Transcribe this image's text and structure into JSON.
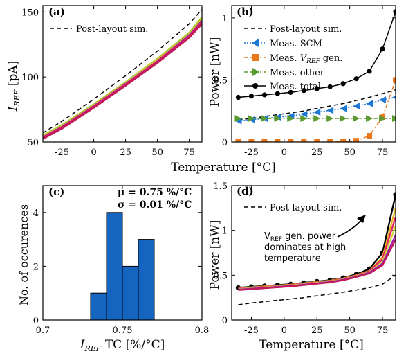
{
  "figure": {
    "x_unit_label": "Temperature [°C]",
    "x_unit_label_d": "Temperature [°C]"
  },
  "chart_data": [
    {
      "panel": "(a)",
      "type": "line",
      "ylabel": "I_REF [pA]",
      "xlabel": "Temperature [°C]",
      "xlim": [
        -40,
        85
      ],
      "ylim": [
        50,
        155
      ],
      "xticks": [
        -25,
        0,
        25,
        50,
        75
      ],
      "yticks": [
        50,
        100,
        150
      ],
      "legend": "top-left",
      "x": [
        -40,
        -25,
        0,
        25,
        50,
        75,
        85
      ],
      "series": [
        {
          "name": "Post-layout sim.",
          "style": "dashed",
          "color": "#000000",
          "values": [
            57,
            66,
            83,
            101,
            120,
            141,
            152
          ]
        },
        {
          "color": "#cddc39",
          "values": [
            55,
            63,
            79,
            96,
            114,
            134,
            146
          ]
        },
        {
          "color": "#8bc34a",
          "values": [
            54.5,
            62.5,
            78.5,
            95.5,
            113.5,
            133.5,
            145
          ]
        },
        {
          "color": "#e6b422",
          "values": [
            54,
            62,
            78,
            95,
            113,
            132.5,
            144
          ]
        },
        {
          "color": "#9c27b0",
          "values": [
            53.5,
            61.5,
            77.5,
            94.5,
            112,
            132,
            143
          ]
        },
        {
          "color": "#e91e63",
          "values": [
            53,
            61,
            77,
            94,
            111.5,
            131,
            142
          ]
        },
        {
          "color": "#c2185b",
          "values": [
            52.5,
            60.5,
            76.5,
            93.5,
            111,
            130.5,
            141
          ]
        }
      ]
    },
    {
      "panel": "(b)",
      "type": "line",
      "ylabel": "Power [nW]",
      "xlabel": "Temperature [°C]",
      "xlim": [
        -40,
        85
      ],
      "ylim": [
        0,
        1.1
      ],
      "xticks": [
        -25,
        0,
        25,
        50,
        75
      ],
      "yticks": [
        0,
        0.5,
        1
      ],
      "ytick_labels": [
        "0",
        "0.5",
        "1"
      ],
      "legend": "top-right",
      "series": [
        {
          "name": "Post-layout sim.",
          "style": "dashed",
          "color": "#000000",
          "x": [
            -35,
            -25,
            -15,
            -5,
            5,
            15,
            25,
            35,
            45,
            55,
            65,
            75,
            85
          ],
          "values": [
            0.18,
            0.19,
            0.205,
            0.22,
            0.235,
            0.25,
            0.27,
            0.29,
            0.31,
            0.335,
            0.36,
            0.39,
            0.42
          ]
        },
        {
          "name": "Meas. SCM",
          "style": "dotted",
          "marker": "triangle-left",
          "color": "#1f77d4",
          "x": [
            -35,
            -25,
            -15,
            -5,
            5,
            15,
            25,
            35,
            45,
            55,
            65,
            75,
            85
          ],
          "values": [
            0.17,
            0.18,
            0.19,
            0.2,
            0.21,
            0.225,
            0.24,
            0.255,
            0.27,
            0.29,
            0.31,
            0.34,
            0.36
          ]
        },
        {
          "name": "Meas. V_REF gen.",
          "style": "dashdot",
          "marker": "square",
          "color": "#e8761a",
          "x": [
            -35,
            -25,
            -15,
            -5,
            5,
            15,
            25,
            35,
            45,
            55,
            65,
            75,
            85
          ],
          "values": [
            0,
            0,
            0,
            0,
            0,
            0,
            0,
            0,
            0.002,
            0.01,
            0.05,
            0.2,
            0.5
          ]
        },
        {
          "name": "Meas. other",
          "style": "dashdot",
          "marker": "triangle-right",
          "color": "#5a9a2e",
          "x": [
            -35,
            -25,
            -15,
            -5,
            5,
            15,
            25,
            35,
            45,
            55,
            65,
            75,
            85
          ],
          "values": [
            0.19,
            0.19,
            0.19,
            0.19,
            0.19,
            0.19,
            0.19,
            0.19,
            0.19,
            0.19,
            0.19,
            0.19,
            0.19
          ]
        },
        {
          "name": "Meas. total",
          "style": "solid",
          "marker": "circle",
          "color": "#000000",
          "x": [
            -35,
            -25,
            -15,
            -5,
            5,
            15,
            25,
            35,
            45,
            55,
            65,
            75,
            85
          ],
          "values": [
            0.36,
            0.37,
            0.38,
            0.39,
            0.4,
            0.415,
            0.43,
            0.445,
            0.47,
            0.51,
            0.57,
            0.75,
            1.05
          ]
        }
      ]
    },
    {
      "panel": "(c)",
      "type": "bar",
      "ylabel": "No. of occurences",
      "xlabel": "I_REF TC [%/°C]",
      "xlim": [
        0.7,
        0.8
      ],
      "ylim": [
        0,
        5
      ],
      "xticks": [
        0.7,
        0.75,
        0.8
      ],
      "xtick_labels": [
        "0.7",
        "0.75",
        "0.8"
      ],
      "yticks": [
        0,
        2,
        4
      ],
      "bins": [
        [
          0.73,
          0.74
        ],
        [
          0.74,
          0.75
        ],
        [
          0.75,
          0.76
        ],
        [
          0.76,
          0.77
        ]
      ],
      "values": [
        1,
        4,
        2,
        3
      ],
      "color": "#1565c0",
      "stats": {
        "mu": "μ = 0.75 %/°C",
        "sigma": "σ = 0.01 %/°C"
      }
    },
    {
      "panel": "(d)",
      "type": "line",
      "ylabel": "Power [nW]",
      "xlabel": "Temperature [°C]",
      "xlim": [
        -40,
        85
      ],
      "ylim": [
        0,
        1.5
      ],
      "xticks": [
        -25,
        0,
        25,
        50,
        75
      ],
      "yticks": [
        0,
        0.5,
        1,
        1.5
      ],
      "ytick_labels": [
        "0",
        "0.5",
        "1",
        "1.5"
      ],
      "legend": "top-left",
      "annotation": {
        "line1": "V",
        "sub": "REF",
        "line1_rest": " gen. power",
        "line2": "dominates at high",
        "line3": "temperature"
      },
      "x": [
        -35,
        -25,
        -15,
        -5,
        5,
        15,
        25,
        35,
        45,
        55,
        65,
        75,
        85
      ],
      "series": [
        {
          "name": "Post-layout sim.",
          "style": "dashed",
          "color": "#000000",
          "values": [
            0.17,
            0.19,
            0.205,
            0.22,
            0.235,
            0.25,
            0.27,
            0.29,
            0.31,
            0.335,
            0.36,
            0.4,
            0.5
          ]
        },
        {
          "color": "#000000",
          "marker": "circle",
          "values": [
            0.36,
            0.37,
            0.38,
            0.39,
            0.4,
            0.415,
            0.43,
            0.445,
            0.47,
            0.51,
            0.57,
            0.75,
            1.4
          ]
        },
        {
          "color": "#e6b422",
          "values": [
            0.355,
            0.365,
            0.375,
            0.385,
            0.395,
            0.41,
            0.425,
            0.44,
            0.465,
            0.5,
            0.55,
            0.7,
            1.25
          ]
        },
        {
          "color": "#e91e63",
          "values": [
            0.35,
            0.36,
            0.37,
            0.38,
            0.39,
            0.405,
            0.42,
            0.435,
            0.46,
            0.495,
            0.545,
            0.68,
            1.15
          ]
        },
        {
          "color": "#cddc39",
          "values": [
            0.345,
            0.355,
            0.365,
            0.375,
            0.385,
            0.4,
            0.415,
            0.43,
            0.455,
            0.49,
            0.535,
            0.65,
            1.05
          ]
        },
        {
          "color": "#9c27b0",
          "values": [
            0.34,
            0.35,
            0.36,
            0.37,
            0.38,
            0.395,
            0.41,
            0.425,
            0.45,
            0.485,
            0.53,
            0.63,
            0.95
          ]
        },
        {
          "color": "#c2185b",
          "values": [
            0.335,
            0.345,
            0.355,
            0.365,
            0.375,
            0.39,
            0.405,
            0.42,
            0.445,
            0.48,
            0.52,
            0.61,
            0.9
          ]
        }
      ]
    }
  ]
}
